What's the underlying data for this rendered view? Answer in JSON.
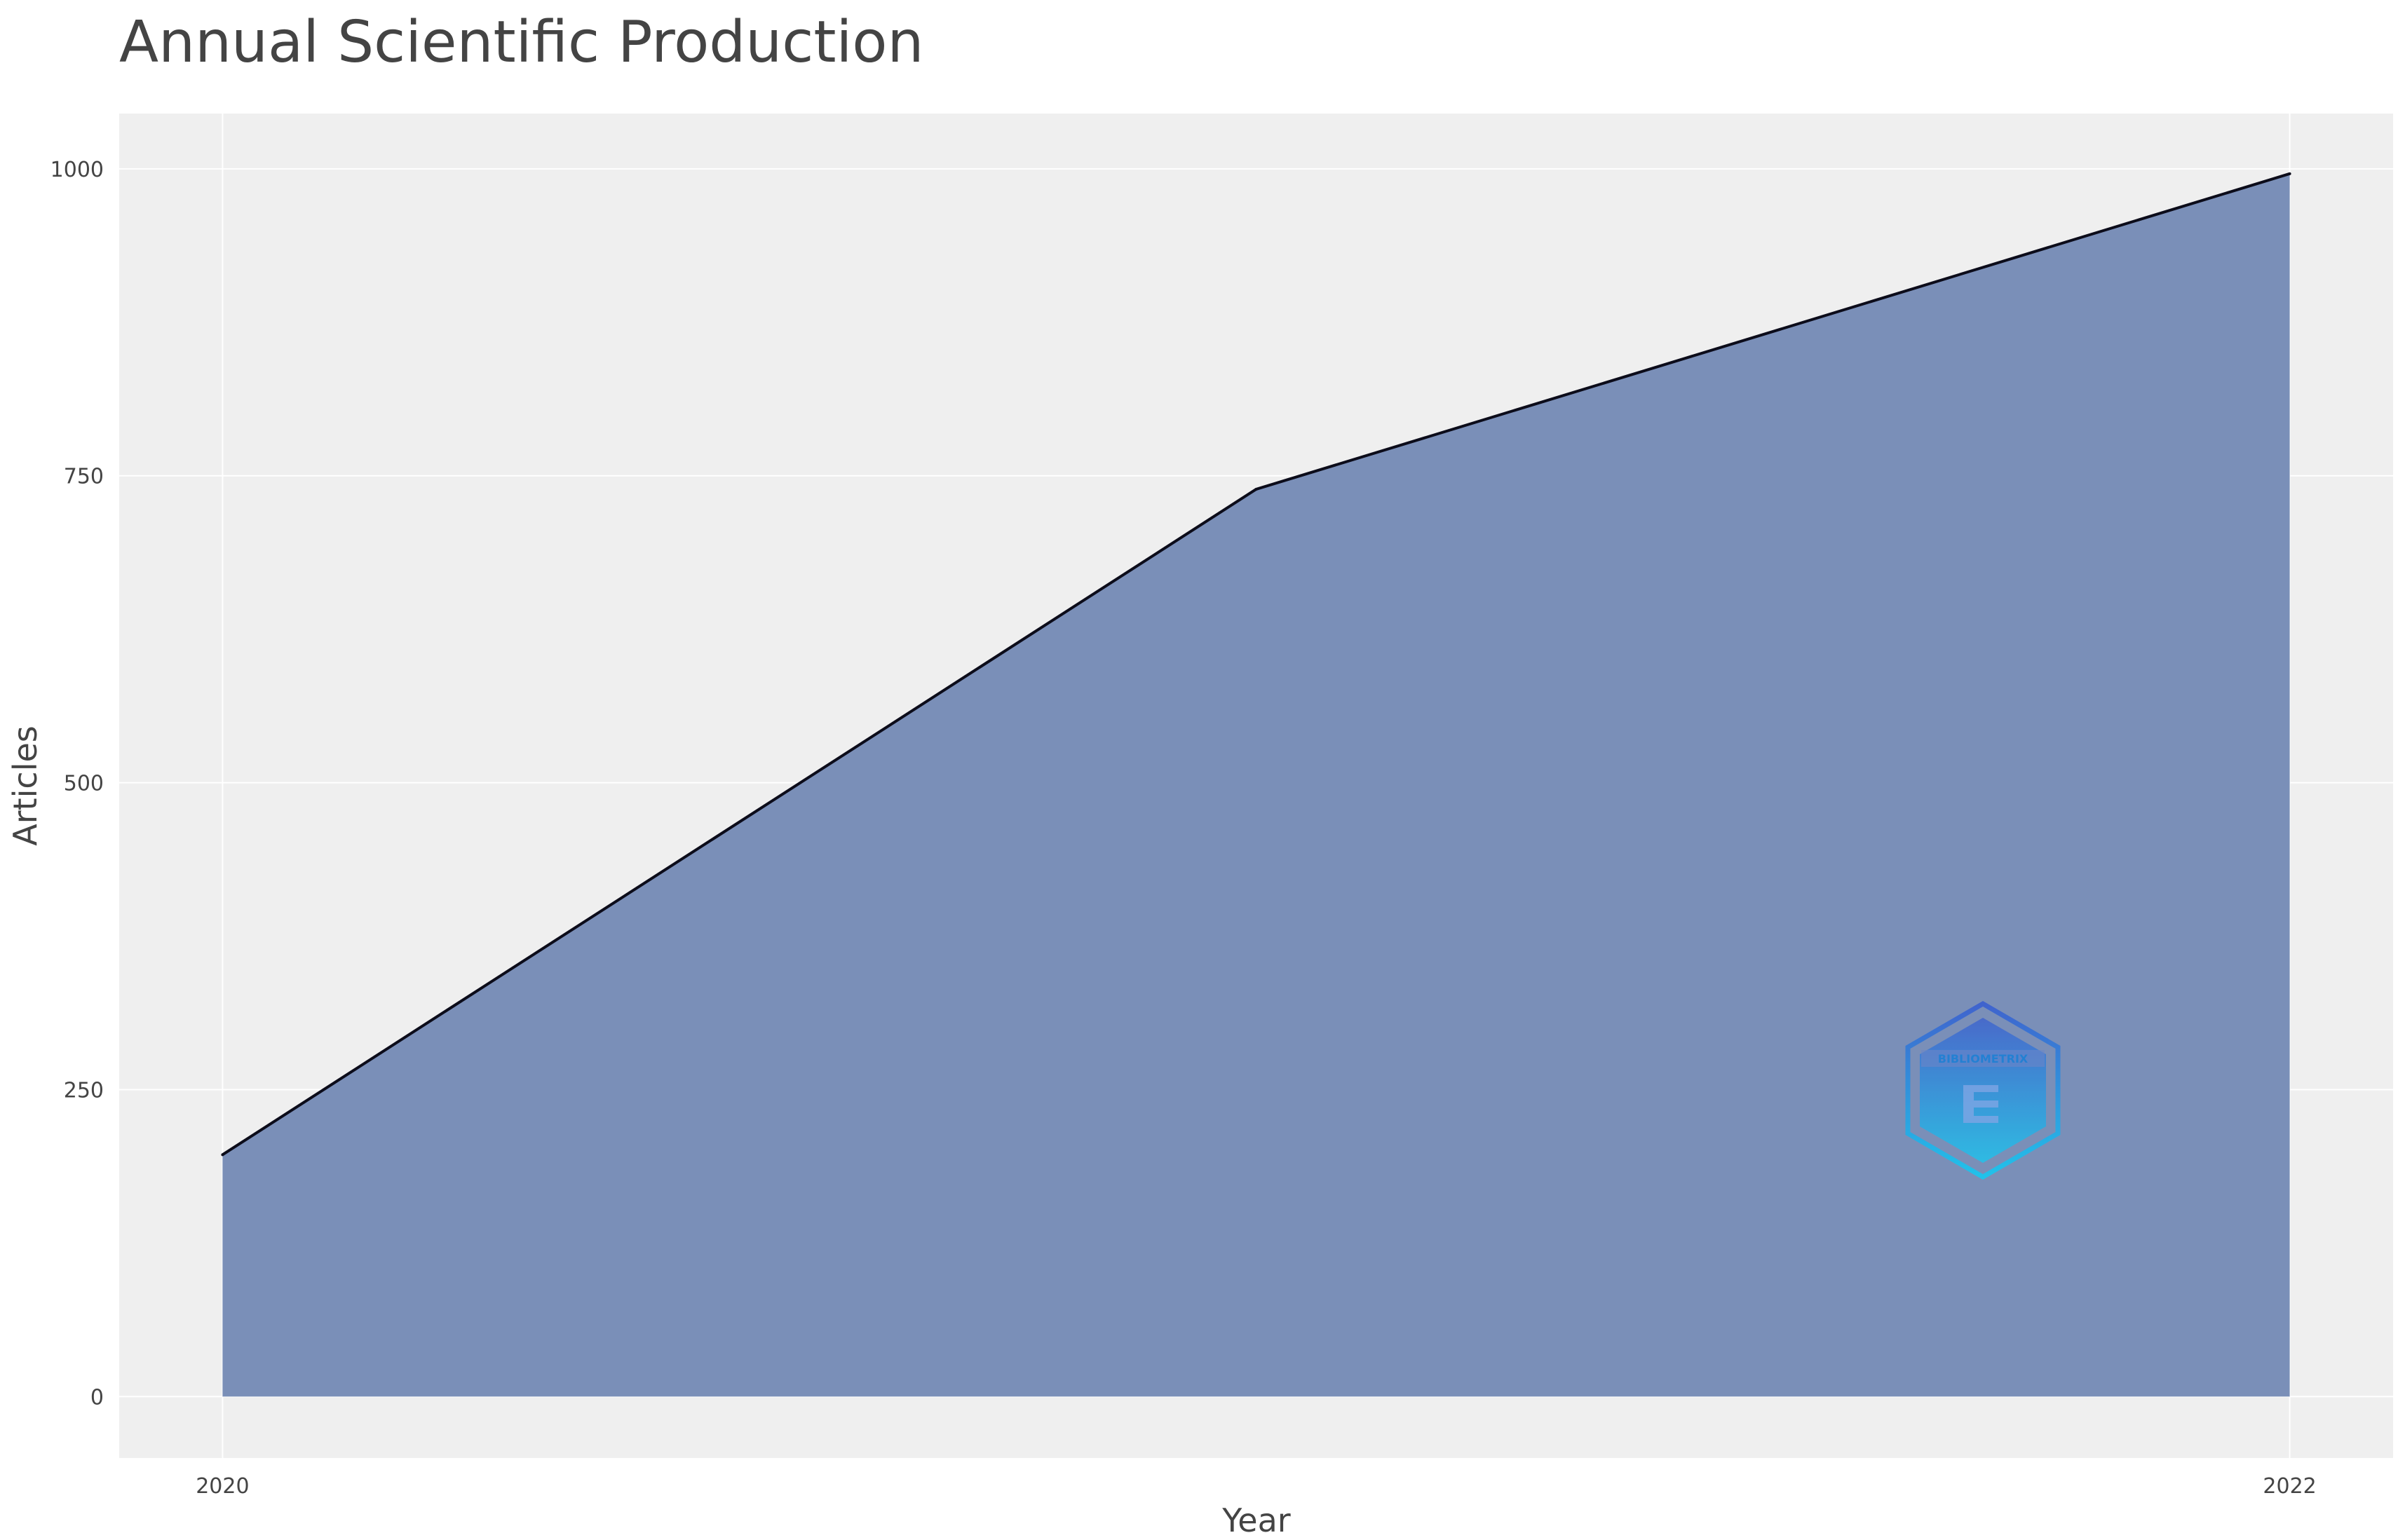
{
  "chart_data": {
    "type": "area",
    "title": "Annual Scientific Production",
    "xlabel": "Year",
    "ylabel": "Articles",
    "x": [
      2020,
      2021,
      2022
    ],
    "x_tick_labels": [
      "2020",
      "2022"
    ],
    "values": [
      197,
      739,
      996
    ],
    "xlim": [
      2019.9,
      2022.1
    ],
    "ylim": [
      -50,
      1045
    ],
    "y_ticks": [
      0,
      250,
      500,
      750,
      1000
    ],
    "y_tick_labels": [
      "0",
      "250",
      "500",
      "750",
      "1000"
    ],
    "grid": true,
    "legend": "none",
    "colors": {
      "fill": "#7a8fb8",
      "line": "#0c0c1a",
      "plot_background": "#efefef",
      "grid": "#ffffff"
    }
  },
  "watermark": {
    "text": "BIBLIOMETRIX",
    "icon": "bibliometrix-hexagon-logo-icon",
    "colors": [
      "#3a5fd0",
      "#18c8f0"
    ]
  }
}
